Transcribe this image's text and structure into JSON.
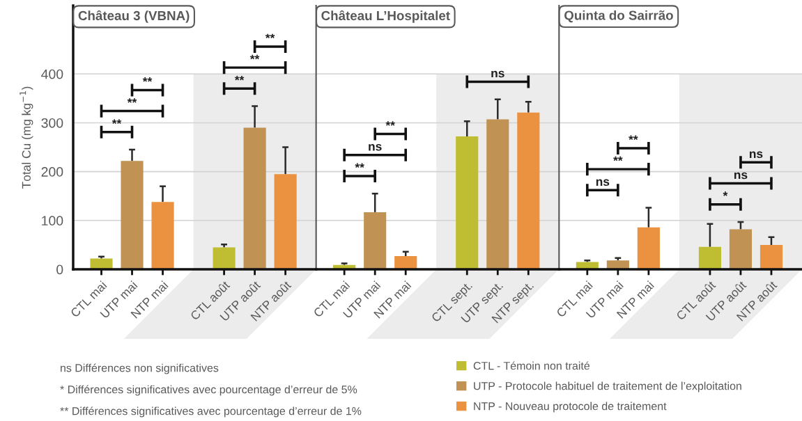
{
  "chart_data": [
    {
      "type": "bar",
      "title": "Château 3 (VBNA)",
      "ylabel": "Total Cu (mg kg$^{−1}$)",
      "categories": [
        "CTL mai",
        "UTP mai",
        "NTP mai",
        null,
        "CTL août",
        "UTP août",
        "NTP août"
      ],
      "series": [
        {
          "name": "CTL - Témoin non traité",
          "color": "#bfbe32",
          "values": [
            22,
            null,
            null,
            null,
            45,
            null,
            null
          ],
          "errors": [
            [
              22,
              26
            ],
            null,
            null,
            null,
            [
              45,
              51
            ],
            null,
            null
          ]
        },
        {
          "name": "UTP - Protocole habituel de traitement de l’exploitation",
          "color": "#c09254",
          "values": [
            null,
            222,
            null,
            null,
            null,
            290,
            null
          ],
          "errors": [
            null,
            [
              222,
              245
            ],
            null,
            null,
            null,
            [
              290,
              334
            ],
            null
          ]
        },
        {
          "name": "NTP - Nouveau protocole de traitement",
          "color": "#eb9241",
          "values": [
            null,
            null,
            138,
            null,
            null,
            null,
            195
          ],
          "errors": [
            null,
            null,
            [
              138,
              170
            ],
            null,
            null,
            null,
            [
              195,
              250
            ]
          ]
        }
      ],
      "stacked": true,
      "ylim": [
        0,
        540
      ],
      "yticks": [
        0,
        100,
        200,
        300,
        400
      ],
      "grid": "y",
      "legend": "bottom",
      "annotations": [
        "**",
        "**",
        "**",
        "**",
        "**",
        "**"
      ]
    },
    {
      "type": "bar",
      "title": "Château L’Hospitalet",
      "categories": [
        "CTL mai",
        "UTP mai",
        "NTP mai",
        null,
        "CTL sept.",
        "UTP sept.",
        "NTP sept."
      ],
      "series": [
        {
          "color": "#bfbe32",
          "values": [
            9,
            null,
            null,
            null,
            272,
            null,
            null
          ],
          "errors": [
            [
              9,
              12
            ],
            null,
            null,
            null,
            [
              272,
              303
            ],
            null,
            null
          ]
        },
        {
          "color": "#c09254",
          "values": [
            null,
            117,
            null,
            null,
            null,
            307,
            null
          ],
          "errors": [
            null,
            [
              117,
              155
            ],
            null,
            null,
            null,
            [
              307,
              348
            ],
            null
          ]
        },
        {
          "color": "#eb9241",
          "values": [
            null,
            null,
            27,
            null,
            null,
            null,
            321
          ],
          "errors": [
            null,
            null,
            [
              27,
              36
            ],
            null,
            null,
            null,
            [
              321,
              343
            ]
          ]
        }
      ],
      "stacked": true,
      "ylim": [
        0,
        540
      ],
      "yticks": [
        0,
        100,
        200,
        300,
        400
      ],
      "grid": "y",
      "tick_labels": "x",
      "annotations": [
        "**",
        "ns",
        "**",
        "ns"
      ]
    },
    {
      "type": "bar",
      "title": "Quinta do Sairrão",
      "categories": [
        "CTL mai",
        "UTP mai",
        "NTP mai",
        null,
        "CTL août",
        "UTP août",
        "NTP août"
      ],
      "series": [
        {
          "color": "#bfbe32",
          "values": [
            15,
            null,
            null,
            null,
            46,
            null,
            null
          ],
          "errors": [
            [
              15,
              18
            ],
            null,
            null,
            null,
            [
              46,
              93
            ],
            null,
            null
          ]
        },
        {
          "color": "#c09254",
          "values": [
            null,
            18,
            null,
            null,
            null,
            82,
            null
          ],
          "errors": [
            null,
            [
              18,
              23
            ],
            null,
            null,
            null,
            [
              82,
              97
            ],
            null
          ]
        },
        {
          "color": "#eb9241",
          "values": [
            null,
            null,
            86,
            null,
            null,
            null,
            50
          ],
          "errors": [
            null,
            null,
            [
              86,
              126
            ],
            null,
            null,
            null,
            [
              50,
              66
            ]
          ]
        }
      ],
      "stacked": true,
      "ylim": [
        0,
        540
      ],
      "yticks": [
        0,
        100,
        200,
        300,
        400
      ],
      "grid": "y",
      "tick_labels": "x",
      "annotations": [
        "ns",
        "**",
        "**",
        "*",
        "ns",
        "ns"
      ]
    },
    {
      "type": "other",
      "annotations": [
        "ns Différences non significatives",
        "* Différences significatives avec pourcentage d’erreur de 5%",
        "** Différences significatives avec pourcentage d’erreur de 1%"
      ]
    }
  ]
}
